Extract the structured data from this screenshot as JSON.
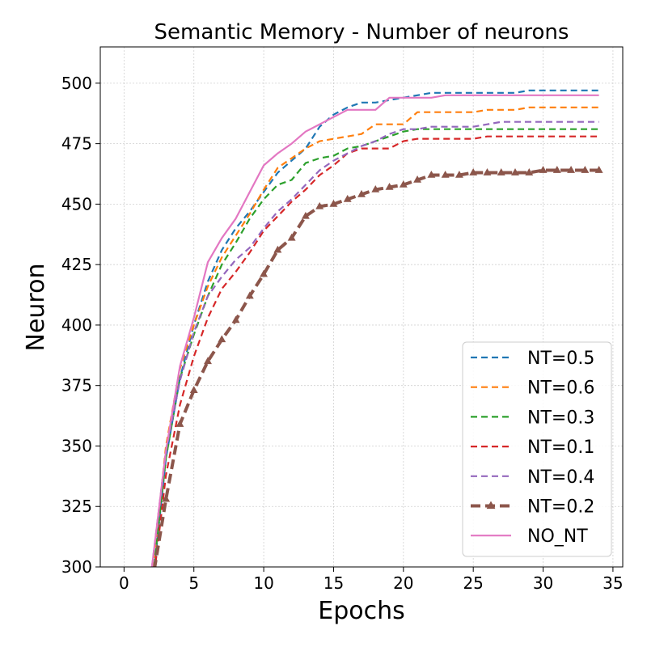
{
  "chart_data": {
    "type": "line",
    "title": "Semantic Memory - Number of neurons",
    "xlabel": "Epochs",
    "ylabel": "Neuron",
    "xlim": [
      -1.7,
      35.7
    ],
    "ylim": [
      300,
      515
    ],
    "xticks": [
      0,
      5,
      10,
      15,
      20,
      25,
      30,
      35
    ],
    "yticks": [
      300,
      325,
      350,
      375,
      400,
      425,
      450,
      475,
      500
    ],
    "grid": true,
    "legend_position": "lower-right",
    "x": [
      2,
      3,
      4,
      5,
      6,
      7,
      8,
      9,
      10,
      11,
      12,
      13,
      14,
      15,
      16,
      17,
      18,
      19,
      20,
      21,
      22,
      23,
      24,
      25,
      26,
      27,
      28,
      29,
      30,
      31,
      32,
      33,
      34
    ],
    "series": [
      {
        "name": "NT=0.5",
        "color": "#1f77b4",
        "style": "dashed",
        "values": [
          290,
          345,
          378,
          400,
          418,
          431,
          440,
          447,
          455,
          463,
          468,
          473,
          482,
          487,
          490,
          492,
          492,
          493,
          494,
          495,
          496,
          496,
          496,
          496,
          496,
          496,
          496,
          497,
          497,
          497,
          497,
          497,
          497
        ]
      },
      {
        "name": "NT=0.6",
        "color": "#ff7f0e",
        "style": "dashed",
        "values": [
          295,
          350,
          382,
          400,
          416,
          428,
          437,
          446,
          456,
          465,
          469,
          473,
          476,
          477,
          478,
          479,
          483,
          483,
          483,
          488,
          488,
          488,
          488,
          488,
          489,
          489,
          489,
          490,
          490,
          490,
          490,
          490,
          490
        ]
      },
      {
        "name": "NT=0.3",
        "color": "#2ca02c",
        "style": "dashed",
        "values": [
          292,
          345,
          378,
          396,
          412,
          425,
          434,
          444,
          452,
          458,
          460,
          467,
          469,
          470,
          473,
          474,
          476,
          478,
          480,
          481,
          481,
          481,
          481,
          481,
          481,
          481,
          481,
          481,
          481,
          481,
          481,
          481,
          481
        ]
      },
      {
        "name": "NT=0.1",
        "color": "#d62728",
        "style": "dashed",
        "values": [
          289,
          338,
          367,
          387,
          403,
          415,
          422,
          430,
          439,
          445,
          451,
          456,
          462,
          466,
          471,
          473,
          473,
          473,
          476,
          477,
          477,
          477,
          477,
          477,
          478,
          478,
          478,
          478,
          478,
          478,
          478,
          478,
          478
        ]
      },
      {
        "name": "NT=0.4",
        "color": "#9467bd",
        "style": "dashed",
        "values": [
          300,
          348,
          377,
          397,
          412,
          420,
          427,
          432,
          440,
          447,
          452,
          458,
          464,
          468,
          471,
          474,
          476,
          479,
          481,
          481,
          482,
          482,
          482,
          482,
          483,
          484,
          484,
          484,
          484,
          484,
          484,
          484,
          484
        ]
      },
      {
        "name": "NT=0.2",
        "color": "#8c564b",
        "style": "dash-triangle",
        "values": [
          293,
          328,
          359,
          373,
          385,
          394,
          402,
          412,
          421,
          431,
          436,
          445,
          449,
          450,
          452,
          454,
          456,
          457,
          458,
          460,
          462,
          462,
          462,
          463,
          463,
          463,
          463,
          463,
          464,
          464,
          464,
          464,
          464
        ]
      },
      {
        "name": "NO_NT",
        "color": "#e377c2",
        "style": "solid",
        "values": [
          300,
          348,
          383,
          403,
          426,
          436,
          444,
          455,
          466,
          471,
          475,
          480,
          483,
          486,
          489,
          489,
          489,
          494,
          494,
          494,
          494,
          495,
          495,
          495,
          495,
          495,
          495,
          495,
          495,
          495,
          495,
          495,
          495
        ]
      }
    ]
  }
}
